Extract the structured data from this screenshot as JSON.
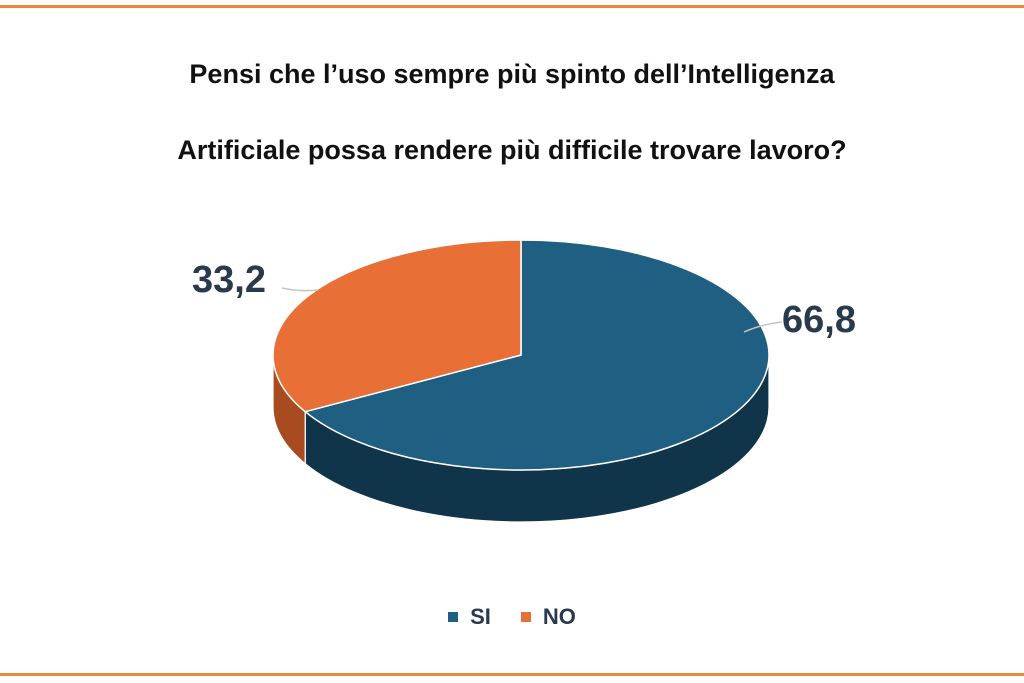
{
  "title_lines": [
    "Pensi che l’uso sempre più spinto dell’Intelligenza",
    "Artificiale possa rendere più difficile trovare lavoro?"
  ],
  "colors": {
    "frame": "#e8893a",
    "si": "#1e5f82",
    "si_side": "#10344a",
    "no": "#e86f35",
    "no_side": "#a84b20"
  },
  "chart_data": {
    "type": "pie",
    "categories": [
      "SI",
      "NO"
    ],
    "values": [
      66.8,
      33.2
    ],
    "labels": [
      "66,8",
      "33,2"
    ],
    "legend": "bottom"
  }
}
